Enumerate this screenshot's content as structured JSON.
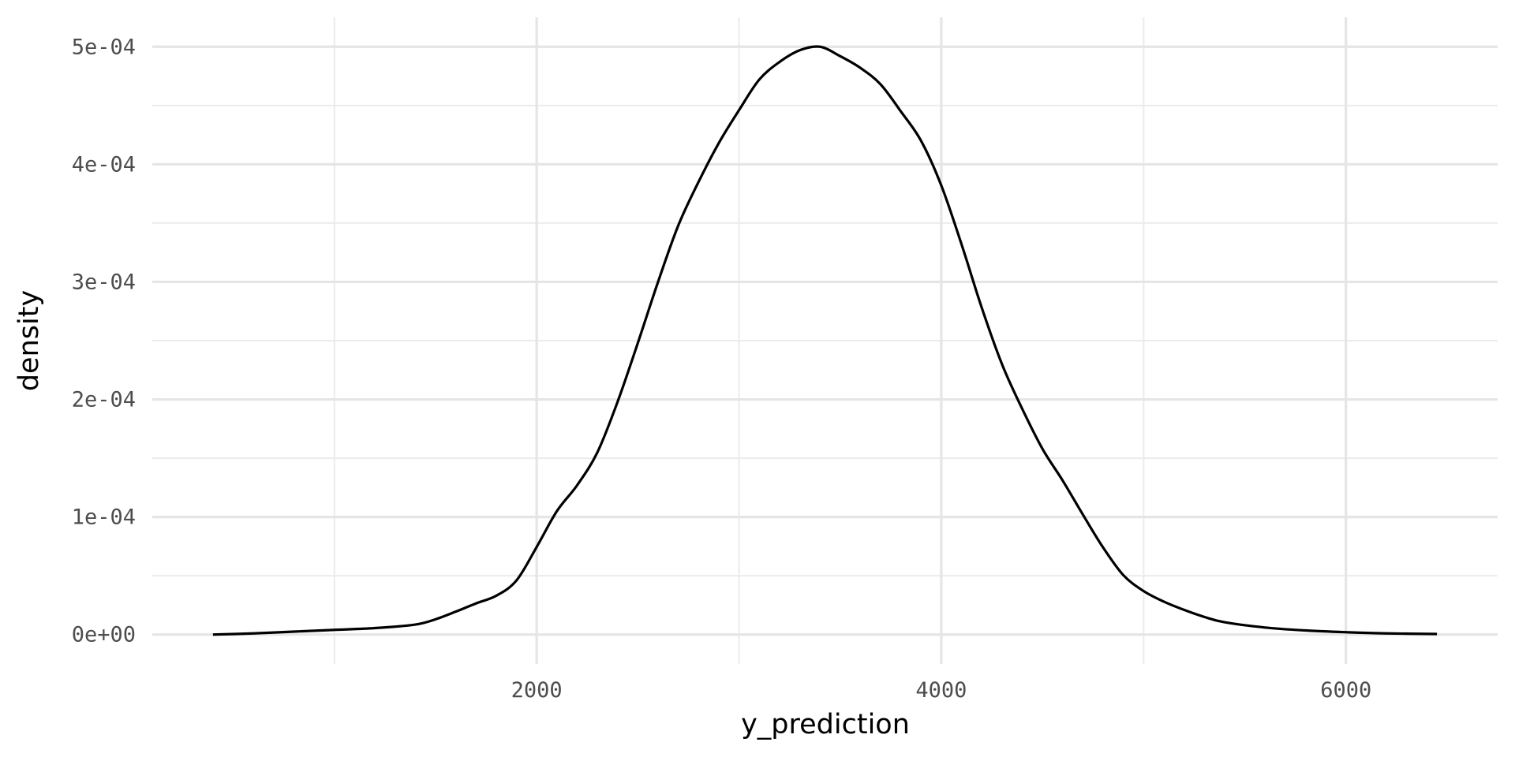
{
  "chart_data": {
    "type": "line",
    "title": "",
    "xlabel": "y_prediction",
    "ylabel": "density",
    "xlim": [
      100,
      6750
    ],
    "ylim": [
      -2.5e-05,
      0.000525
    ],
    "x_ticks": [
      2000,
      4000,
      6000
    ],
    "x_tick_labels": [
      "2000",
      "4000",
      "6000"
    ],
    "x_minor_ticks": [
      1000,
      3000,
      5000
    ],
    "y_ticks": [
      0,
      0.0001,
      0.0002,
      0.0003,
      0.0004,
      0.0005
    ],
    "y_tick_labels": [
      "0e+00",
      "1e-04",
      "2e-04",
      "3e-04",
      "4e-04",
      "5e-04"
    ],
    "y_minor_ticks": [
      5e-05,
      0.00015,
      0.00025,
      0.00035,
      0.00045
    ],
    "grid": true,
    "series": [
      {
        "color": "#000000",
        "x": [
          400,
          600,
          800,
          1000,
          1200,
          1400,
          1500,
          1600,
          1700,
          1800,
          1900,
          2000,
          2100,
          2200,
          2300,
          2400,
          2500,
          2600,
          2700,
          2800,
          2900,
          3000,
          3100,
          3200,
          3300,
          3400,
          3500,
          3600,
          3700,
          3800,
          3900,
          4000,
          4100,
          4200,
          4300,
          4400,
          4500,
          4600,
          4700,
          4800,
          4900,
          5000,
          5100,
          5200,
          5300,
          5400,
          5600,
          5800,
          6000,
          6200,
          6450
        ],
        "y": [
          0,
          1e-06,
          2.5e-06,
          4e-06,
          5.5e-06,
          8.5e-06,
          1.3e-05,
          1.95e-05,
          2.65e-05,
          3.3e-05,
          4.6e-05,
          7.45e-05,
          0.000105,
          0.000127,
          0.000155,
          0.000198,
          0.000248,
          0.0003,
          0.000348,
          0.000385,
          0.000418,
          0.000446,
          0.000472,
          0.000487,
          0.000497,
          0.0005,
          0.000492,
          0.000482,
          0.000468,
          0.000445,
          0.00042,
          0.000382,
          0.000332,
          0.000278,
          0.00023,
          0.000192,
          0.000158,
          0.000131,
          0.000102,
          7.4e-05,
          5.05e-05,
          3.7e-05,
          2.8e-05,
          2.1e-05,
          1.5e-05,
          1.05e-05,
          6e-06,
          3.5e-06,
          2e-06,
          1e-06,
          5e-07
        ]
      }
    ]
  }
}
